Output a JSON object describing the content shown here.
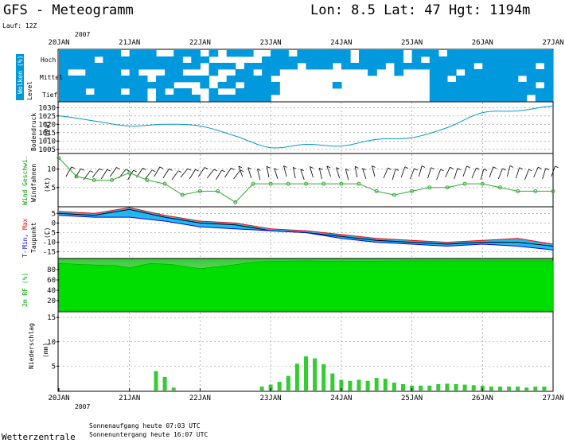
{
  "header": {
    "title": "GFS - Meteogramm",
    "location": "Lon: 8.5 Lat: 47 Hgt: 1194m",
    "run": "Lauf: 12Z"
  },
  "footer": {
    "brand": "Wetterzentrale",
    "sunrise": "Sonnenaufgang heute 07:03 UTC",
    "sunset": "Sonnenuntergang heute 16:07 UTC"
  },
  "axis": {
    "year": "2007",
    "dates": [
      "20JAN",
      "21JAN",
      "22JAN",
      "23JAN",
      "24JAN",
      "25JAN",
      "26JAN",
      "27JAN"
    ]
  },
  "panels": {
    "clouds": {
      "label_main": "Wolken",
      "label_unit": "(%)",
      "label_side": "Level",
      "levels": [
        "Hoch",
        "Mittel",
        "Tief"
      ]
    },
    "pressure": {
      "label1": "Bodendruck",
      "label2": "(hPa)"
    },
    "wind": {
      "label_a": "Wind Geschwi.",
      "label_b": "Windfahnen",
      "label_c": "(kt)"
    },
    "temp": {
      "label_a": "T-",
      "label_b": "Min,",
      "label_c": "Max",
      "label_d": "Taupunkt",
      "label_e": "(C)"
    },
    "humidity": {
      "label": "2m RF (%)"
    },
    "precip": {
      "label1": "Niederschlag",
      "label2": "(mm)"
    }
  },
  "chart_data": [
    {
      "type": "heatmap",
      "name": "clouds",
      "rows": [
        "Hoch",
        "Mittel",
        "Tief"
      ],
      "colors": {
        "cloud": "#0099dd"
      }
    },
    {
      "type": "line",
      "name": "pressure",
      "ylim": [
        1003,
        1033
      ],
      "yticks": [
        1005,
        1010,
        1015,
        1020,
        1025,
        1030
      ],
      "x_days": [
        0,
        0.5,
        1,
        1.5,
        2,
        2.5,
        3,
        3.5,
        4,
        4.5,
        5,
        5.5,
        6,
        6.5,
        7
      ],
      "values": [
        1025,
        1022,
        1019,
        1020,
        1019,
        1013,
        1006,
        1008,
        1007,
        1011,
        1012,
        1018,
        1027,
        1028,
        1031
      ],
      "color": "#0099cc"
    },
    {
      "type": "line",
      "name": "wind",
      "ylim": [
        0,
        14
      ],
      "yticks": [
        5,
        10
      ],
      "x_days": [
        0,
        0.25,
        0.5,
        0.75,
        1,
        1.25,
        1.5,
        1.75,
        2,
        2.25,
        2.5,
        2.75,
        3,
        3.25,
        3.5,
        3.75,
        4,
        4.25,
        4.5,
        4.75,
        5,
        5.25,
        5.5,
        5.75,
        6,
        6.25,
        6.5,
        6.75,
        7
      ],
      "values": [
        13,
        8,
        7,
        7,
        9,
        7,
        6,
        3,
        4,
        4,
        1,
        6,
        6,
        6,
        6,
        6,
        6,
        6,
        4,
        3,
        4,
        5,
        5,
        6,
        6,
        5,
        4,
        4,
        4
      ],
      "color": "#33aa33"
    },
    {
      "type": "line",
      "name": "temperature",
      "ylim": [
        -18,
        8
      ],
      "yticks": [
        5,
        0,
        -5,
        -10,
        -15
      ],
      "x_days": [
        0,
        0.5,
        1,
        1.5,
        2,
        2.5,
        3,
        3.5,
        4,
        4.5,
        5,
        5.5,
        6,
        6.5,
        7
      ],
      "series": [
        {
          "name": "T",
          "values": [
            5,
            4,
            7,
            3,
            0,
            -1,
            -4,
            -5,
            -7,
            -9,
            -10,
            -11,
            -10,
            -10,
            -12
          ],
          "color": "#000000"
        },
        {
          "name": "Min",
          "values": [
            4,
            3,
            3,
            1,
            -2,
            -3,
            -4,
            -5,
            -8,
            -10,
            -11,
            -12,
            -11,
            -12,
            -14
          ],
          "color": "#0000ff"
        },
        {
          "name": "Max",
          "values": [
            6,
            5,
            8,
            4,
            1,
            0,
            -3,
            -4,
            -6,
            -8,
            -9,
            -10,
            -9,
            -8,
            -11
          ],
          "color": "#ff0000"
        }
      ]
    },
    {
      "type": "area",
      "name": "humidity",
      "ylim": [
        0,
        100
      ],
      "yticks": [
        20,
        40,
        60,
        80
      ],
      "x_days": [
        0,
        0.5,
        0.8,
        1,
        1.3,
        1.6,
        2,
        2.4,
        2.8,
        3,
        3.5,
        4,
        5,
        6,
        7
      ],
      "values": [
        92,
        89,
        88,
        84,
        92,
        90,
        82,
        88,
        95,
        96,
        97,
        96,
        97,
        97,
        97
      ],
      "color": "#00cc00"
    },
    {
      "type": "bar",
      "name": "precipitation",
      "ylim": [
        0,
        16
      ],
      "yticks": [
        5,
        10,
        15
      ],
      "x_days": [
        1.375,
        1.5,
        1.625,
        2.875,
        3,
        3.125,
        3.25,
        3.375,
        3.5,
        3.625,
        3.75,
        3.875,
        4,
        4.125,
        4.25,
        4.375,
        4.5,
        4.625,
        4.75,
        4.875,
        5,
        5.125,
        5.25,
        5.375,
        5.5,
        5.625,
        5.75,
        5.875,
        6,
        6.125,
        6.25,
        6.375,
        6.5,
        6.625,
        6.75,
        6.875
      ],
      "values": [
        4,
        2.8,
        0.6,
        0.8,
        1.2,
        1.8,
        3,
        5.5,
        7,
        6.6,
        5.4,
        3.5,
        2.2,
        2,
        2.2,
        2,
        2.6,
        2.4,
        1.6,
        1.3,
        1,
        1,
        1,
        1.3,
        1.4,
        1.3,
        1.2,
        1.1,
        1,
        0.8,
        0.8,
        0.8,
        0.8,
        0.6,
        0.8,
        0.8
      ],
      "color": "#33cc33"
    }
  ]
}
